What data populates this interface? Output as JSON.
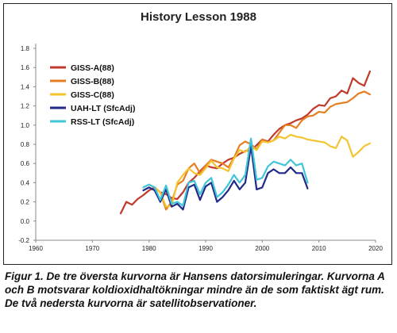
{
  "chart_data": {
    "type": "line",
    "title": "History Lesson 1988",
    "xlabel": "",
    "ylabel": "",
    "xlim": [
      1960,
      2020
    ],
    "ylim": [
      -0.2,
      1.8
    ],
    "x_ticks": [
      "1960",
      "1970",
      "1980",
      "1990",
      "2000",
      "2010",
      "2020"
    ],
    "y_ticks": [
      "-0.2",
      "0.0",
      "0.2",
      "0.4",
      "0.6",
      "0.8",
      "1.0",
      "1.2",
      "1.4",
      "1.6",
      "1.8"
    ],
    "grid": false,
    "legend_position": "top-left",
    "series": [
      {
        "name": "GISS-A(88)",
        "color": "#c0392b",
        "x": [
          1975,
          1976,
          1977,
          1978,
          1979,
          1980,
          1981,
          1982,
          1983,
          1984,
          1985,
          1986,
          1987,
          1988,
          1989,
          1990,
          1991,
          1992,
          1993,
          1994,
          1995,
          1996,
          1997,
          1998,
          1999,
          2000,
          2001,
          2002,
          2003,
          2004,
          2005,
          2006,
          2007,
          2008,
          2009,
          2010,
          2011,
          2012,
          2013,
          2014,
          2015,
          2016,
          2017,
          2018,
          2019
        ],
        "y": [
          0.08,
          0.2,
          0.17,
          0.23,
          0.27,
          0.32,
          0.35,
          0.3,
          0.28,
          0.24,
          0.23,
          0.3,
          0.4,
          0.45,
          0.52,
          0.58,
          0.56,
          0.55,
          0.6,
          0.64,
          0.66,
          0.7,
          0.73,
          0.74,
          0.79,
          0.85,
          0.83,
          0.9,
          0.96,
          1.0,
          1.02,
          1.05,
          1.07,
          1.11,
          1.17,
          1.21,
          1.2,
          1.28,
          1.3,
          1.36,
          1.33,
          1.49,
          1.44,
          1.41,
          1.56
        ]
      },
      {
        "name": "GISS-B(88)",
        "color": "#e67e22",
        "x": [
          1980,
          1981,
          1982,
          1983,
          1984,
          1985,
          1986,
          1987,
          1988,
          1989,
          1990,
          1991,
          1992,
          1993,
          1994,
          1995,
          1996,
          1997,
          1998,
          1999,
          2000,
          2001,
          2002,
          2003,
          2004,
          2005,
          2006,
          2007,
          2008,
          2009,
          2010,
          2011,
          2012,
          2013,
          2014,
          2015,
          2016,
          2017,
          2018,
          2019
        ],
        "y": [
          0.38,
          0.35,
          0.3,
          0.12,
          0.2,
          0.38,
          0.42,
          0.55,
          0.6,
          0.5,
          0.58,
          0.64,
          0.62,
          0.6,
          0.56,
          0.66,
          0.79,
          0.83,
          0.8,
          0.75,
          0.85,
          0.82,
          0.84,
          0.92,
          1.0,
          1.0,
          0.97,
          1.05,
          1.09,
          1.1,
          1.14,
          1.13,
          1.19,
          1.22,
          1.23,
          1.24,
          1.28,
          1.33,
          1.35,
          1.32
        ]
      },
      {
        "name": "GISS-C(88)",
        "color": "#f4c430",
        "x": [
          1980,
          1981,
          1982,
          1983,
          1984,
          1985,
          1986,
          1987,
          1988,
          1989,
          1990,
          1991,
          1992,
          1993,
          1994,
          1995,
          1996,
          1997,
          1998,
          1999,
          2000,
          2001,
          2002,
          2003,
          2004,
          2005,
          2006,
          2007,
          2008,
          2009,
          2010,
          2011,
          2012,
          2013,
          2014,
          2015,
          2016,
          2017,
          2018,
          2019
        ],
        "y": [
          0.38,
          0.35,
          0.3,
          0.15,
          0.16,
          0.4,
          0.48,
          0.55,
          0.5,
          0.48,
          0.55,
          0.63,
          0.56,
          0.55,
          0.52,
          0.65,
          0.74,
          0.72,
          0.78,
          0.74,
          0.83,
          0.82,
          0.84,
          0.88,
          0.86,
          0.9,
          0.88,
          0.87,
          0.85,
          0.84,
          0.83,
          0.82,
          0.78,
          0.76,
          0.88,
          0.84,
          0.67,
          0.72,
          0.78,
          0.81
        ]
      },
      {
        "name": "UAH-LT (SfcAdj)",
        "color": "#1f2a8a",
        "x": [
          1979,
          1980,
          1981,
          1982,
          1983,
          1984,
          1985,
          1986,
          1987,
          1988,
          1989,
          1990,
          1991,
          1992,
          1993,
          1994,
          1995,
          1996,
          1997,
          1998,
          1999,
          2000,
          2001,
          2002,
          2003,
          2004,
          2005,
          2006,
          2007,
          2008
        ],
        "y": [
          0.32,
          0.35,
          0.32,
          0.2,
          0.33,
          0.15,
          0.18,
          0.12,
          0.35,
          0.38,
          0.22,
          0.36,
          0.4,
          0.2,
          0.25,
          0.32,
          0.42,
          0.33,
          0.4,
          0.78,
          0.33,
          0.35,
          0.5,
          0.54,
          0.5,
          0.5,
          0.56,
          0.5,
          0.5,
          0.34
        ]
      },
      {
        "name": "RSS-LT (SfcAdj)",
        "color": "#40c4d8",
        "x": [
          1979,
          1980,
          1981,
          1982,
          1983,
          1984,
          1985,
          1986,
          1987,
          1988,
          1989,
          1990,
          1991,
          1992,
          1993,
          1994,
          1995,
          1996,
          1997,
          1998,
          1999,
          2000,
          2001,
          2002,
          2003,
          2004,
          2005,
          2006,
          2007,
          2008
        ],
        "y": [
          0.35,
          0.38,
          0.35,
          0.22,
          0.37,
          0.18,
          0.2,
          0.16,
          0.4,
          0.42,
          0.28,
          0.4,
          0.45,
          0.25,
          0.3,
          0.38,
          0.48,
          0.4,
          0.48,
          0.86,
          0.43,
          0.45,
          0.57,
          0.62,
          0.6,
          0.58,
          0.64,
          0.58,
          0.6,
          0.4
        ]
      }
    ]
  },
  "caption": "Figur 1. De tre översta kurvorna är Hansens datorsimuleringar. Kurvorna A och B motsvarar koldioxidhaltökningar mindre än de som faktiskt ägt rum. De två nedersta kurvorna är satellitobservationer."
}
